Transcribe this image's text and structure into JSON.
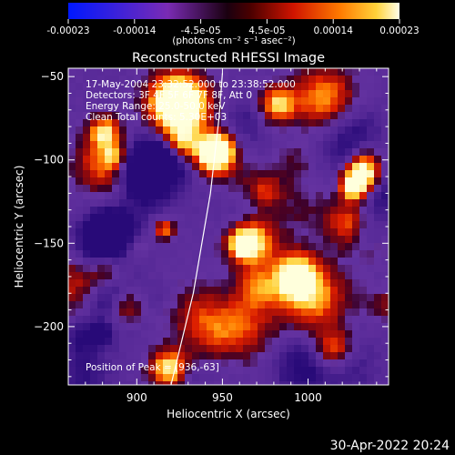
{
  "colorbar": {
    "tick_labels": [
      "-0.00023",
      "-0.00014",
      "-4.5e-05",
      "4.5e-05",
      "0.00014",
      "0.00023"
    ],
    "units_label": "(photons cm⁻² s⁻¹ asec⁻²)",
    "range": [
      -0.00023,
      0.00023
    ]
  },
  "title": "Reconstructed RHESSI Image",
  "axes": {
    "x_label": "Heliocentric X (arcsec)",
    "y_label": "Heliocentric Y (arcsec)",
    "x_range": [
      860,
      1047
    ],
    "y_range": [
      -235,
      -45
    ],
    "x_ticks": [
      {
        "value": 900,
        "label": "900"
      },
      {
        "value": 950,
        "label": "950"
      },
      {
        "value": 1000,
        "label": "1000"
      }
    ],
    "y_ticks": [
      {
        "value": -50,
        "label": "−50"
      },
      {
        "value": -100,
        "label": "−100"
      },
      {
        "value": -150,
        "label": "−150"
      },
      {
        "value": -200,
        "label": "−200"
      }
    ]
  },
  "annotations": {
    "time_range": "17-May-2004 23:32:52.000 to 23:38:52.000",
    "detectors": "Detectors: 3F 4F 5F 6F 7F 8F, Att 0",
    "energy": "Energy Range: 25.0-50.0 keV",
    "clean": "Clean    Total counts: 5.30E+03",
    "peak": "Position of Peak = [936,-63]"
  },
  "limb_curve": [
    [
      920,
      -235
    ],
    [
      933,
      -180
    ],
    [
      943,
      -120
    ],
    [
      948,
      -75
    ],
    [
      950,
      -48
    ]
  ],
  "timestamp": "30-Apr-2022 20:24"
}
